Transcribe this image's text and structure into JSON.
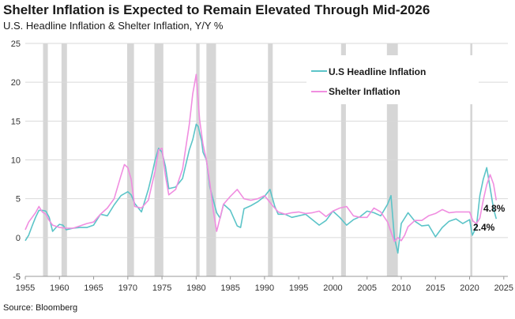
{
  "header": {
    "title": "Shelter Inflation is Expected to Remain Elevated Through Mid-2026",
    "subtitle": "U.S. Headline Inflation & Shelter Inflation, Y/Y %"
  },
  "footer": {
    "source": "Source: Bloomberg"
  },
  "colors": {
    "headline": "#5cc4c8",
    "shelter": "#f08ee0",
    "recession": "#d6d6d6",
    "grid": "#d9d9d9"
  },
  "chart_data": {
    "type": "line",
    "title": "Shelter Inflation is Expected to Remain Elevated Through Mid-2026",
    "subtitle": "U.S. Headline Inflation & Shelter Inflation, Y/Y %",
    "xlabel": "",
    "ylabel": "",
    "xlim": [
      1955,
      2025.6
    ],
    "ylim": [
      -5,
      25
    ],
    "xticks": [
      1955,
      1960,
      1965,
      1970,
      1975,
      1980,
      1985,
      1990,
      1995,
      2000,
      2005,
      2010,
      2015,
      2020,
      2025
    ],
    "yticks": [
      -5,
      0,
      5,
      10,
      15,
      20,
      25
    ],
    "grid": "horizontal",
    "legend_position": "top-right",
    "recessions": [
      [
        1957.6,
        1958.3
      ],
      [
        1960.3,
        1961.1
      ],
      [
        1969.9,
        1970.9
      ],
      [
        1973.9,
        1975.2
      ],
      [
        1980.0,
        1980.5
      ],
      [
        1981.5,
        1982.9
      ],
      [
        1990.5,
        1991.2
      ],
      [
        2001.2,
        2001.9
      ],
      [
        2007.9,
        2009.5
      ],
      [
        2020.1,
        2020.4
      ]
    ],
    "series": [
      {
        "name": "U.S Headline Inflation",
        "color": "#5cc4c8",
        "end_label": "2.4%",
        "x": [
          1955.0,
          1955.5,
          1956.0,
          1956.5,
          1957.0,
          1957.5,
          1958.0,
          1958.5,
          1959.0,
          1959.5,
          1960.0,
          1960.5,
          1961.0,
          1962.0,
          1963.0,
          1964.0,
          1965.0,
          1966.0,
          1967.0,
          1968.0,
          1969.0,
          1970.0,
          1970.5,
          1971.0,
          1972.0,
          1973.0,
          1973.5,
          1974.0,
          1974.5,
          1975.0,
          1975.5,
          1976.0,
          1977.0,
          1978.0,
          1979.0,
          1979.5,
          1980.0,
          1980.3,
          1980.8,
          1981.0,
          1981.5,
          1982.0,
          1983.0,
          1983.5,
          1984.0,
          1985.0,
          1986.0,
          1986.5,
          1987.0,
          1988.0,
          1989.0,
          1990.0,
          1990.8,
          1991.5,
          1992.0,
          1993.0,
          1994.0,
          1995.0,
          1996.0,
          1997.0,
          1998.0,
          1999.0,
          2000.0,
          2001.0,
          2002.0,
          2003.0,
          2004.0,
          2005.0,
          2006.0,
          2007.0,
          2008.0,
          2008.5,
          2009.0,
          2009.5,
          2010.0,
          2011.0,
          2012.0,
          2013.0,
          2014.0,
          2015.0,
          2016.0,
          2017.0,
          2018.0,
          2019.0,
          2020.0,
          2020.4,
          2021.0,
          2021.5,
          2022.0,
          2022.5,
          2023.0,
          2023.5,
          2023.9
        ],
        "y": [
          -0.4,
          0.3,
          1.5,
          2.6,
          3.5,
          3.5,
          3.4,
          2.6,
          0.8,
          1.3,
          1.7,
          1.6,
          1.0,
          1.2,
          1.3,
          1.3,
          1.6,
          3.0,
          2.8,
          4.2,
          5.4,
          5.9,
          5.5,
          4.4,
          3.3,
          6.2,
          8.0,
          10.0,
          11.5,
          11.0,
          9.2,
          6.3,
          6.5,
          7.6,
          11.3,
          12.6,
          14.6,
          14.3,
          12.4,
          11.0,
          10.0,
          6.5,
          3.2,
          2.5,
          4.3,
          3.5,
          1.5,
          1.3,
          3.7,
          4.1,
          4.6,
          5.3,
          6.2,
          4.0,
          3.0,
          3.0,
          2.6,
          2.8,
          3.0,
          2.3,
          1.6,
          2.2,
          3.4,
          2.6,
          1.6,
          2.3,
          2.7,
          3.4,
          3.2,
          2.8,
          4.3,
          5.4,
          0.0,
          -2.0,
          1.8,
          3.2,
          2.1,
          1.5,
          1.6,
          0.1,
          1.3,
          2.1,
          2.4,
          1.8,
          2.3,
          0.3,
          1.4,
          5.4,
          7.5,
          9.0,
          6.4,
          3.7,
          2.4
        ]
      },
      {
        "name": "Shelter Inflation",
        "color": "#f08ee0",
        "end_label": "4.8%",
        "x": [
          1955.0,
          1955.5,
          1956.0,
          1956.5,
          1957.0,
          1957.5,
          1958.0,
          1958.5,
          1959.0,
          1960.0,
          1961.0,
          1962.0,
          1963.0,
          1964.0,
          1965.0,
          1966.0,
          1967.0,
          1968.0,
          1969.0,
          1969.5,
          1970.0,
          1970.5,
          1971.0,
          1972.0,
          1973.0,
          1974.0,
          1974.5,
          1975.0,
          1975.5,
          1976.0,
          1977.0,
          1978.0,
          1979.0,
          1979.5,
          1980.0,
          1980.5,
          1981.0,
          1981.5,
          1982.0,
          1982.5,
          1983.0,
          1984.0,
          1985.0,
          1986.0,
          1987.0,
          1988.0,
          1989.0,
          1990.0,
          1991.0,
          1992.0,
          1993.0,
          1994.0,
          1995.0,
          1996.0,
          1997.0,
          1998.0,
          1999.0,
          2000.0,
          2001.0,
          2002.0,
          2003.0,
          2004.0,
          2005.0,
          2006.0,
          2007.0,
          2008.0,
          2009.0,
          2009.5,
          2010.0,
          2010.5,
          2011.0,
          2012.0,
          2013.0,
          2014.0,
          2015.0,
          2016.0,
          2017.0,
          2018.0,
          2019.0,
          2020.0,
          2020.5,
          2021.0,
          2021.5,
          2022.0,
          2022.5,
          2023.0,
          2023.5,
          2023.9
        ],
        "y": [
          1.0,
          2.0,
          2.6,
          3.2,
          4.0,
          3.3,
          3.0,
          2.2,
          1.6,
          1.3,
          1.2,
          1.2,
          1.5,
          1.8,
          2.0,
          3.0,
          3.8,
          5.0,
          8.0,
          9.4,
          9.0,
          7.5,
          4.0,
          3.8,
          4.8,
          8.6,
          11.3,
          11.5,
          8.0,
          5.5,
          6.2,
          8.8,
          14.6,
          18.5,
          21.0,
          15.2,
          12.0,
          10.0,
          7.0,
          3.5,
          0.8,
          4.3,
          5.3,
          6.2,
          5.0,
          4.8,
          5.0,
          5.4,
          4.3,
          3.3,
          3.0,
          3.2,
          3.3,
          3.1,
          3.2,
          3.4,
          2.7,
          3.4,
          3.8,
          4.0,
          2.8,
          2.6,
          2.6,
          3.8,
          3.3,
          2.0,
          -0.5,
          0.0,
          -0.4,
          0.3,
          1.4,
          2.2,
          2.2,
          2.8,
          3.1,
          3.6,
          3.2,
          3.3,
          3.3,
          3.3,
          2.1,
          1.8,
          2.5,
          4.8,
          6.8,
          8.1,
          6.9,
          4.8
        ]
      }
    ]
  }
}
